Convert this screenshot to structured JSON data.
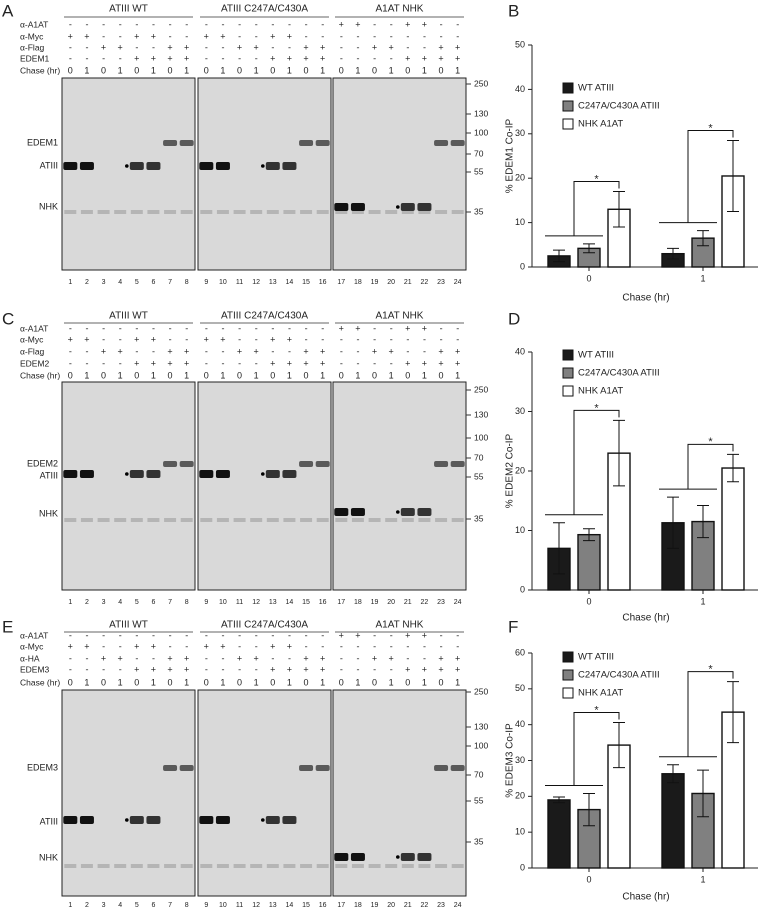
{
  "panels": [
    {
      "letter": "A",
      "groups": [
        "ATIII WT",
        "ATIII C247A/C430A",
        "A1AT NHK"
      ],
      "rows": [
        {
          "label": "α-A1AT",
          "signs": [
            "-",
            "-",
            "-",
            "-",
            "-",
            "-",
            "-",
            "-",
            "-",
            "-",
            "-",
            "-",
            "-",
            "-",
            "-",
            "-",
            "+",
            "+",
            "-",
            "-",
            "+",
            "+",
            "-",
            "-"
          ]
        },
        {
          "label": "α-Myc",
          "signs": [
            "+",
            "+",
            "-",
            "-",
            "+",
            "+",
            "-",
            "-",
            "+",
            "+",
            "-",
            "-",
            "+",
            "+",
            "-",
            "-",
            "-",
            "-",
            "-",
            "-",
            "-",
            "-",
            "-",
            "-"
          ]
        },
        {
          "label": "α-Flag",
          "signs": [
            "-",
            "-",
            "+",
            "+",
            "-",
            "-",
            "+",
            "+",
            "-",
            "-",
            "+",
            "+",
            "-",
            "-",
            "+",
            "+",
            "-",
            "-",
            "+",
            "+",
            "-",
            "-",
            "+",
            "+"
          ]
        },
        {
          "label": "EDEM1",
          "signs": [
            "-",
            "-",
            "-",
            "-",
            "+",
            "+",
            "+",
            "+",
            "-",
            "-",
            "-",
            "-",
            "+",
            "+",
            "+",
            "+",
            "-",
            "-",
            "-",
            "-",
            "+",
            "+",
            "+",
            "+"
          ]
        },
        {
          "label": "Chase (hr)",
          "signs": [
            0,
            1,
            0,
            1,
            0,
            1,
            0,
            1,
            0,
            1,
            0,
            1,
            0,
            1,
            0,
            1,
            0,
            1,
            0,
            1,
            0,
            1,
            0,
            1
          ]
        }
      ],
      "lanes": [
        1,
        2,
        3,
        4,
        5,
        6,
        7,
        8,
        9,
        10,
        11,
        12,
        13,
        14,
        15,
        16,
        17,
        18,
        19,
        20,
        21,
        22,
        23,
        24
      ],
      "bands": [
        "EDEM1",
        "ATIII",
        "NHK"
      ],
      "markers": [
        250,
        130,
        100,
        70,
        55,
        35
      ]
    },
    {
      "letter": "C",
      "groups": [
        "ATIII WT",
        "ATIII C247A/C430A",
        "A1AT NHK"
      ],
      "rows": [
        {
          "label": "α-A1AT",
          "signs": [
            "-",
            "-",
            "-",
            "-",
            "-",
            "-",
            "-",
            "-",
            "-",
            "-",
            "-",
            "-",
            "-",
            "-",
            "-",
            "-",
            "+",
            "+",
            "-",
            "-",
            "+",
            "+",
            "-",
            "-"
          ]
        },
        {
          "label": "α-Myc",
          "signs": [
            "+",
            "+",
            "-",
            "-",
            "+",
            "+",
            "-",
            "-",
            "+",
            "+",
            "-",
            "-",
            "+",
            "+",
            "-",
            "-",
            "-",
            "-",
            "-",
            "-",
            "-",
            "-",
            "-",
            "-"
          ]
        },
        {
          "label": "α-Flag",
          "signs": [
            "-",
            "-",
            "+",
            "+",
            "-",
            "-",
            "+",
            "+",
            "-",
            "-",
            "+",
            "+",
            "-",
            "-",
            "+",
            "+",
            "-",
            "-",
            "+",
            "+",
            "-",
            "-",
            "+",
            "+"
          ]
        },
        {
          "label": "EDEM2",
          "signs": [
            "-",
            "-",
            "-",
            "-",
            "+",
            "+",
            "+",
            "+",
            "-",
            "-",
            "-",
            "-",
            "+",
            "+",
            "+",
            "+",
            "-",
            "-",
            "-",
            "-",
            "+",
            "+",
            "+",
            "+"
          ]
        },
        {
          "label": "Chase (hr)",
          "signs": [
            0,
            1,
            0,
            1,
            0,
            1,
            0,
            1,
            0,
            1,
            0,
            1,
            0,
            1,
            0,
            1,
            0,
            1,
            0,
            1,
            0,
            1,
            0,
            1
          ]
        }
      ],
      "lanes": [
        1,
        2,
        3,
        4,
        5,
        6,
        7,
        8,
        9,
        10,
        11,
        12,
        13,
        14,
        15,
        16,
        17,
        18,
        19,
        20,
        21,
        22,
        23,
        24
      ],
      "bands": [
        "EDEM2",
        "ATIII",
        "NHK"
      ],
      "markers": [
        250,
        130,
        100,
        70,
        55,
        35
      ]
    },
    {
      "letter": "E",
      "groups": [
        "ATIII WT",
        "ATIII C247A/C430A",
        "A1AT NHK"
      ],
      "rows": [
        {
          "label": "α-A1AT",
          "signs": [
            "-",
            "-",
            "-",
            "-",
            "-",
            "-",
            "-",
            "-",
            "-",
            "-",
            "-",
            "-",
            "-",
            "-",
            "-",
            "-",
            "+",
            "+",
            "-",
            "-",
            "+",
            "+",
            "-",
            "-"
          ]
        },
        {
          "label": "α-Myc",
          "signs": [
            "+",
            "+",
            "-",
            "-",
            "+",
            "+",
            "-",
            "-",
            "+",
            "+",
            "-",
            "-",
            "+",
            "+",
            "-",
            "-",
            "-",
            "-",
            "-",
            "-",
            "-",
            "-",
            "-",
            "-"
          ]
        },
        {
          "label": "α-HA",
          "signs": [
            "-",
            "-",
            "+",
            "+",
            "-",
            "-",
            "+",
            "+",
            "-",
            "-",
            "+",
            "+",
            "-",
            "-",
            "+",
            "+",
            "-",
            "-",
            "+",
            "+",
            "-",
            "-",
            "+",
            "+"
          ]
        },
        {
          "label": "EDEM3",
          "signs": [
            "-",
            "-",
            "-",
            "-",
            "+",
            "+",
            "+",
            "+",
            "-",
            "-",
            "-",
            "-",
            "+",
            "+",
            "+",
            "+",
            "-",
            "-",
            "-",
            "-",
            "+",
            "+",
            "+",
            "+"
          ]
        },
        {
          "label": "Chase (hr)",
          "signs": [
            0,
            1,
            0,
            1,
            0,
            1,
            0,
            1,
            0,
            1,
            0,
            1,
            0,
            1,
            0,
            1,
            0,
            1,
            0,
            1,
            0,
            1,
            0,
            1
          ]
        }
      ],
      "lanes": [
        1,
        2,
        3,
        4,
        5,
        6,
        7,
        8,
        9,
        10,
        11,
        12,
        13,
        14,
        15,
        16,
        17,
        18,
        19,
        20,
        21,
        22,
        23,
        24
      ],
      "bands": [
        "EDEM3",
        "ATIII",
        "NHK"
      ],
      "markers": [
        250,
        130,
        100,
        70,
        55,
        35
      ]
    }
  ],
  "chart_data": [
    {
      "type": "bar",
      "panel_label": "B",
      "ylabel": "% EDEM1 Co-IP",
      "xlabel": "Chase (hr)",
      "categories": [
        "0",
        "1"
      ],
      "series": [
        {
          "name": "WT ATIII",
          "color": "#1a1a1a",
          "values": [
            2.5,
            3
          ],
          "errors": [
            1.3,
            1.2
          ]
        },
        {
          "name": "C247A/C430A ATIII",
          "color": "#808080",
          "values": [
            4.2,
            6.5
          ],
          "errors": [
            1,
            1.7
          ]
        },
        {
          "name": "NHK A1AT",
          "color": "#ffffff",
          "values": [
            13,
            20.5
          ],
          "errors": [
            4,
            8
          ]
        }
      ],
      "ylim": [
        0,
        50
      ],
      "yticks": [
        0,
        10,
        20,
        30,
        40,
        50
      ],
      "legend": "upper left",
      "annotations": [
        "*",
        "*"
      ]
    },
    {
      "type": "bar",
      "panel_label": "D",
      "ylabel": "% EDEM2 Co-IP",
      "xlabel": "Chase (hr)",
      "categories": [
        "0",
        "1"
      ],
      "series": [
        {
          "name": "WT ATIII",
          "color": "#1a1a1a",
          "values": [
            7,
            11.3
          ],
          "errors": [
            4.3,
            4.3
          ]
        },
        {
          "name": "C247A/C430A ATIII",
          "color": "#808080",
          "values": [
            9.3,
            11.5
          ],
          "errors": [
            1,
            2.7
          ]
        },
        {
          "name": "NHK A1AT",
          "color": "#ffffff",
          "values": [
            23,
            20.5
          ],
          "errors": [
            5.5,
            2.3
          ]
        }
      ],
      "ylim": [
        0,
        40
      ],
      "yticks": [
        0,
        10,
        20,
        30,
        40
      ],
      "legend": "upper left",
      "annotations": [
        "*",
        "*"
      ]
    },
    {
      "type": "bar",
      "panel_label": "F",
      "ylabel": "% EDEM3 Co-IP",
      "xlabel": "Chase (hr)",
      "categories": [
        "0",
        "1"
      ],
      "series": [
        {
          "name": "WT ATIII",
          "color": "#1a1a1a",
          "values": [
            19,
            26.3
          ],
          "errors": [
            0.8,
            2.5
          ]
        },
        {
          "name": "C247A/C430A ATIII",
          "color": "#808080",
          "values": [
            16.3,
            20.8
          ],
          "errors": [
            4.5,
            6.5
          ]
        },
        {
          "name": "NHK A1AT",
          "color": "#ffffff",
          "values": [
            34.3,
            43.5
          ],
          "errors": [
            6.3,
            8.5
          ]
        }
      ],
      "ylim": [
        0,
        60
      ],
      "yticks": [
        0,
        10,
        20,
        30,
        40,
        50,
        60
      ],
      "legend": "upper left",
      "annotations": [
        "*",
        "*"
      ]
    }
  ]
}
